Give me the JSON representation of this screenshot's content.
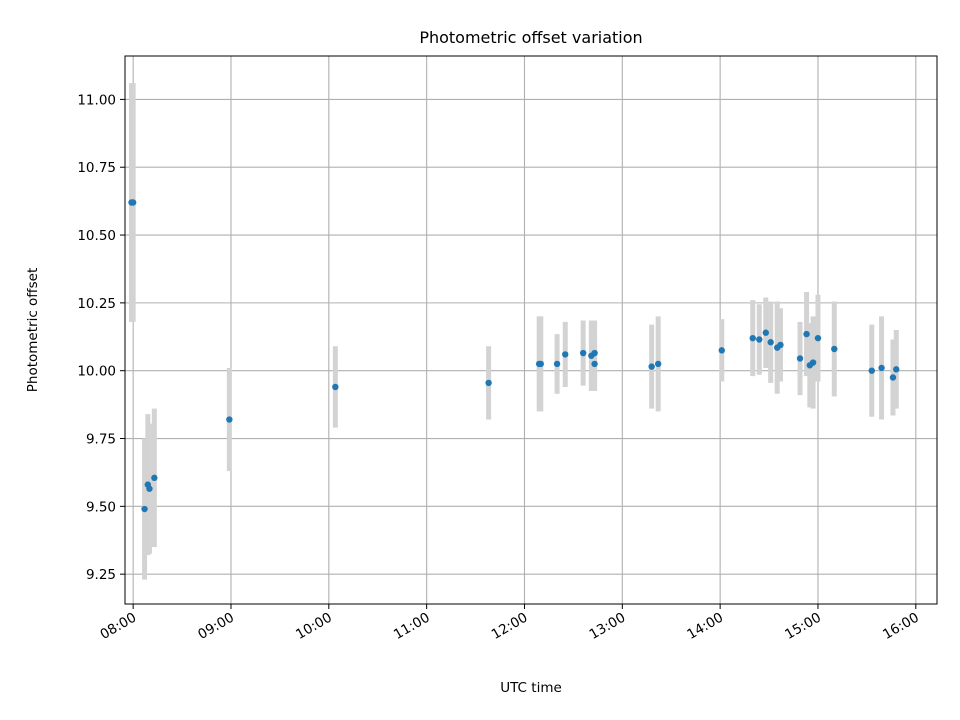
{
  "chart_data": {
    "type": "scatter",
    "title": "Photometric offset variation",
    "xlabel": "UTC time",
    "ylabel": "Photometric offset",
    "x_tick_labels": [
      "08:00",
      "09:00",
      "10:00",
      "11:00",
      "12:00",
      "13:00",
      "14:00",
      "15:00",
      "16:00"
    ],
    "y_tick_labels": [
      "9.25",
      "9.50",
      "9.75",
      "10.00",
      "10.25",
      "10.50",
      "10.75",
      "11.00"
    ],
    "y_ticks": [
      9.25,
      9.5,
      9.75,
      10.0,
      10.25,
      10.5,
      10.75,
      11.0
    ],
    "x_ticks": [
      "08:00",
      "09:00",
      "10:00",
      "11:00",
      "12:00",
      "13:00",
      "14:00",
      "15:00",
      "16:00"
    ],
    "xlim": [
      "07:55",
      "16:13"
    ],
    "ylim": [
      9.14,
      11.16
    ],
    "grid": true,
    "marker_color": "#1f77b4",
    "errorbar_color": "#d3d3d3",
    "points": [
      {
        "x": "07:59",
        "y": 10.62,
        "err": 0.44
      },
      {
        "x": "08:00",
        "y": 10.62,
        "err": 0.44
      },
      {
        "x": "08:07",
        "y": 9.49,
        "err": 0.26
      },
      {
        "x": "08:09",
        "y": 9.58,
        "err": 0.26
      },
      {
        "x": "08:10",
        "y": 9.565,
        "err": 0.24
      },
      {
        "x": "08:13",
        "y": 9.605,
        "err": 0.255
      },
      {
        "x": "08:59",
        "y": 9.82,
        "err": 0.19
      },
      {
        "x": "10:04",
        "y": 9.94,
        "err": 0.15
      },
      {
        "x": "11:38",
        "y": 9.955,
        "err": 0.135
      },
      {
        "x": "12:09",
        "y": 10.025,
        "err": 0.175
      },
      {
        "x": "12:10",
        "y": 10.025,
        "err": 0.175
      },
      {
        "x": "12:20",
        "y": 10.025,
        "err": 0.11
      },
      {
        "x": "12:25",
        "y": 10.06,
        "err": 0.12
      },
      {
        "x": "12:36",
        "y": 10.065,
        "err": 0.12
      },
      {
        "x": "12:41",
        "y": 10.055,
        "err": 0.13
      },
      {
        "x": "12:43",
        "y": 10.065,
        "err": 0.12
      },
      {
        "x": "12:43",
        "y": 10.025,
        "err": 0.1
      },
      {
        "x": "13:18",
        "y": 10.015,
        "err": 0.155
      },
      {
        "x": "13:22",
        "y": 10.025,
        "err": 0.175
      },
      {
        "x": "14:01",
        "y": 10.075,
        "err": 0.115
      },
      {
        "x": "14:20",
        "y": 10.12,
        "err": 0.14
      },
      {
        "x": "14:24",
        "y": 10.115,
        "err": 0.13
      },
      {
        "x": "14:28",
        "y": 10.14,
        "err": 0.13
      },
      {
        "x": "14:31",
        "y": 10.105,
        "err": 0.15
      },
      {
        "x": "14:35",
        "y": 10.085,
        "err": 0.17
      },
      {
        "x": "14:37",
        "y": 10.095,
        "err": 0.135
      },
      {
        "x": "14:49",
        "y": 10.045,
        "err": 0.135
      },
      {
        "x": "14:53",
        "y": 10.135,
        "err": 0.155
      },
      {
        "x": "14:55",
        "y": 10.02,
        "err": 0.155
      },
      {
        "x": "14:57",
        "y": 10.03,
        "err": 0.17
      },
      {
        "x": "15:00",
        "y": 10.12,
        "err": 0.16
      },
      {
        "x": "15:10",
        "y": 10.08,
        "err": 0.175
      },
      {
        "x": "15:33",
        "y": 10.0,
        "err": 0.17
      },
      {
        "x": "15:39",
        "y": 10.01,
        "err": 0.19
      },
      {
        "x": "15:46",
        "y": 9.975,
        "err": 0.14
      },
      {
        "x": "15:48",
        "y": 10.005,
        "err": 0.145
      }
    ]
  }
}
